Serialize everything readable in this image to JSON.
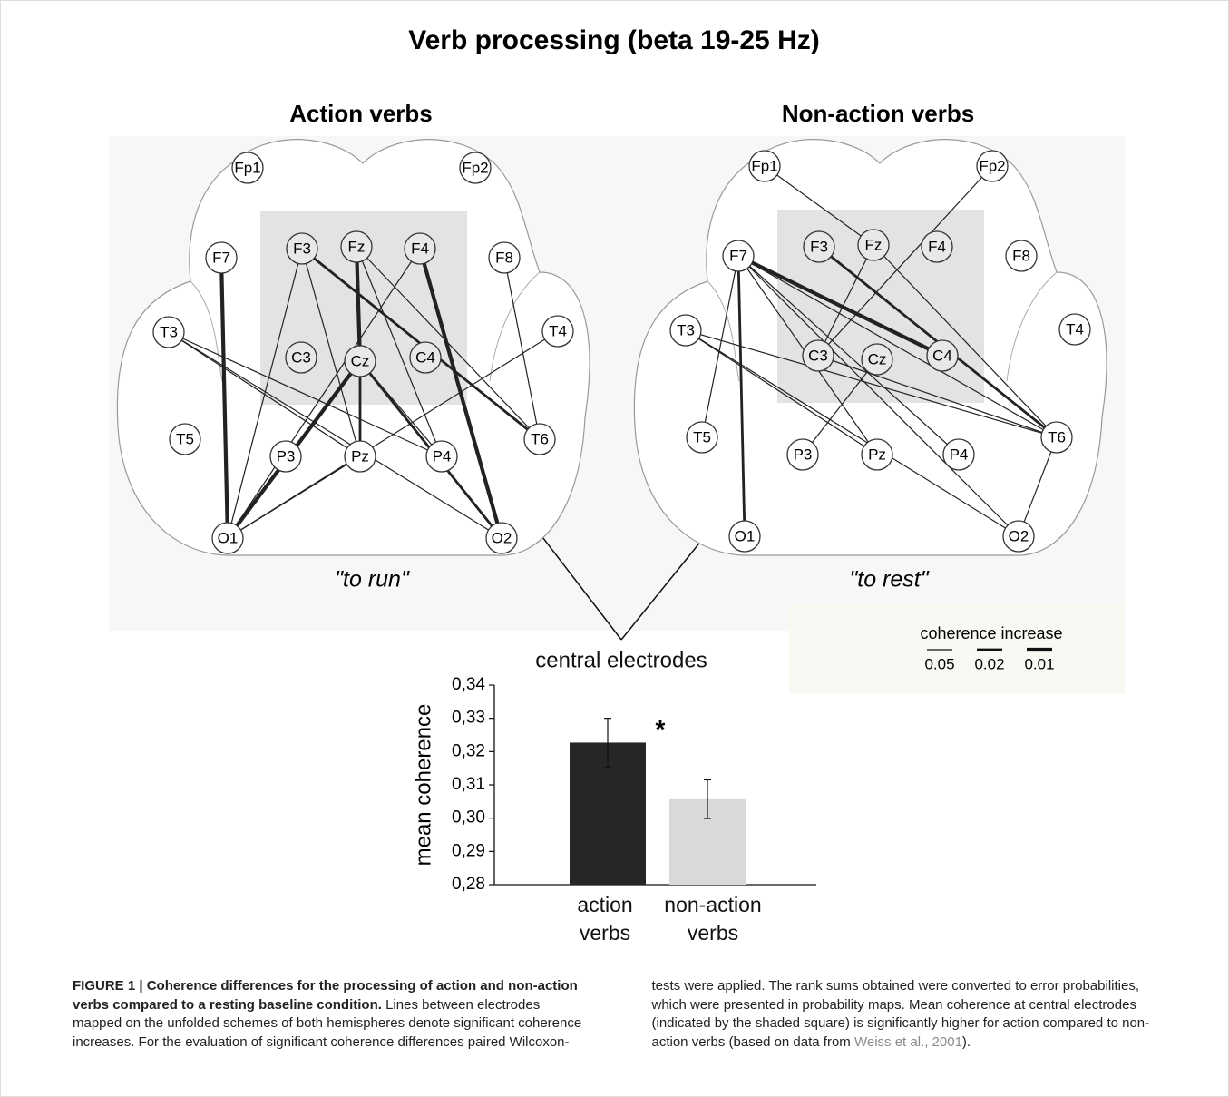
{
  "figure": {
    "title": "Verb processing (beta 19-25 Hz)",
    "panels": [
      {
        "title": "Action verbs",
        "caption": "\"to run\"",
        "electrodes": [
          "Fp1",
          "Fp2",
          "F7",
          "F3",
          "Fz",
          "F4",
          "F8",
          "T3",
          "C3",
          "Cz",
          "C4",
          "T4",
          "T5",
          "P3",
          "Pz",
          "P4",
          "T6",
          "O1",
          "O2"
        ],
        "edges": [
          {
            "from": "F7",
            "to": "O1",
            "p": 0.01
          },
          {
            "from": "F3",
            "to": "T6",
            "p": 0.02
          },
          {
            "from": "F3",
            "to": "Pz",
            "p": 0.05
          },
          {
            "from": "F3",
            "to": "O1",
            "p": 0.05
          },
          {
            "from": "Fz",
            "to": "Cz",
            "p": 0.01
          },
          {
            "from": "Cz",
            "to": "O1",
            "p": 0.01
          },
          {
            "from": "Fz",
            "to": "T6",
            "p": 0.05
          },
          {
            "from": "Fz",
            "to": "P4",
            "p": 0.05
          },
          {
            "from": "F4",
            "to": "O2",
            "p": 0.01
          },
          {
            "from": "F4",
            "to": "O1",
            "p": 0.05
          },
          {
            "from": "Cz",
            "to": "Pz",
            "p": 0.02
          },
          {
            "from": "Cz",
            "to": "O2",
            "p": 0.02
          },
          {
            "from": "Cz",
            "to": "P4",
            "p": 0.05
          },
          {
            "from": "T3",
            "to": "P4",
            "p": 0.05
          },
          {
            "from": "T3",
            "to": "O2",
            "p": 0.05
          },
          {
            "from": "T3",
            "to": "Pz",
            "p": 0.05
          },
          {
            "from": "T4",
            "to": "O1",
            "p": 0.05
          },
          {
            "from": "F8",
            "to": "T6",
            "p": 0.05
          },
          {
            "from": "Pz",
            "to": "O1",
            "p": 0.05
          }
        ]
      },
      {
        "title": "Non-action verbs",
        "caption": "\"to rest\"",
        "electrodes": [
          "Fp1",
          "Fp2",
          "F7",
          "F3",
          "Fz",
          "F4",
          "F8",
          "T3",
          "C3",
          "Cz",
          "C4",
          "T4",
          "T5",
          "P3",
          "Pz",
          "P4",
          "T6",
          "O1",
          "O2"
        ],
        "edges": [
          {
            "from": "F7",
            "to": "O1",
            "p": 0.02
          },
          {
            "from": "F7",
            "to": "C4",
            "p": 0.01
          },
          {
            "from": "F7",
            "to": "T6",
            "p": 0.05
          },
          {
            "from": "F7",
            "to": "T5",
            "p": 0.05
          },
          {
            "from": "F7",
            "to": "P4",
            "p": 0.05
          },
          {
            "from": "F7",
            "to": "Pz",
            "p": 0.05
          },
          {
            "from": "F7",
            "to": "O2",
            "p": 0.05
          },
          {
            "from": "F3",
            "to": "T6",
            "p": 0.02
          },
          {
            "from": "Fp1",
            "to": "Fz",
            "p": 0.05
          },
          {
            "from": "Fp2",
            "to": "C3",
            "p": 0.05
          },
          {
            "from": "Fz",
            "to": "C3",
            "p": 0.05
          },
          {
            "from": "Fz",
            "to": "T6",
            "p": 0.05
          },
          {
            "from": "T3",
            "to": "O2",
            "p": 0.05
          },
          {
            "from": "T3",
            "to": "Pz",
            "p": 0.05
          },
          {
            "from": "T3",
            "to": "T6",
            "p": 0.05
          },
          {
            "from": "Cz",
            "to": "P3",
            "p": 0.05
          },
          {
            "from": "T6",
            "to": "O2",
            "p": 0.05
          },
          {
            "from": "C3",
            "to": "T6",
            "p": 0.05
          }
        ]
      }
    ],
    "pointer_label": "central electrodes",
    "legend": {
      "title": "coherence increase",
      "levels": [
        0.05,
        0.02,
        0.01
      ]
    }
  },
  "chart_data": {
    "type": "bar",
    "ylabel": "mean coherence",
    "categories": [
      "action\nverbs",
      "non-action\nverbs"
    ],
    "values": [
      0.3227,
      0.3057
    ],
    "errors": [
      0.0073,
      0.0058
    ],
    "colors": [
      "#262626",
      "#d9d9d9"
    ],
    "annotation": "*",
    "ylim": [
      0.28,
      0.34
    ],
    "yticks": [
      {
        "value": 0.28,
        "label": "0,28"
      },
      {
        "value": 0.29,
        "label": "0,29"
      },
      {
        "value": 0.3,
        "label": "0,30"
      },
      {
        "value": 0.31,
        "label": "0,31"
      },
      {
        "value": 0.32,
        "label": "0,32"
      },
      {
        "value": 0.33,
        "label": "0,33"
      },
      {
        "value": 0.34,
        "label": "0,34"
      }
    ]
  },
  "caption": {
    "lead": "FIGURE 1 | Coherence differences for the processing of action and non-action verbs compared to a resting baseline condition.",
    "body": "Lines between electrodes mapped on the unfolded schemes of both hemispheres denote significant coherence increases. For the evaluation of significant coherence differences paired Wilcoxon-tests were applied. The rank sums obtained were converted to error probabilities, which were presented in probability maps. Mean coherence at central electrodes (indicated by the shaded square) is significantly higher for action compared to non-action verbs (based on data from",
    "citation": "Weiss et al., 2001",
    "end": ")."
  }
}
